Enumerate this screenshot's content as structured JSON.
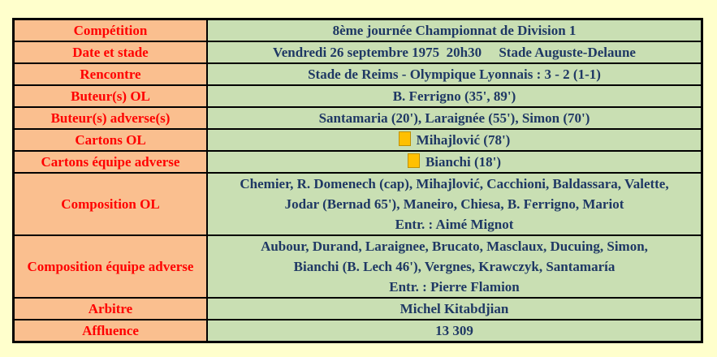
{
  "page": {
    "background_color": "#FFFFCC"
  },
  "table": {
    "label_bg_color": "#FABF8F",
    "label_text_color": "#FF0000",
    "value_bg_color": "#C9DFB3",
    "value_text_color": "#1F3864",
    "yellow_card_color": "#FFC000",
    "rows": [
      {
        "label": "Compétition",
        "value": "8ème journée Championnat de Division 1"
      },
      {
        "label": "Date et stade",
        "value": "Vendredi 26 septembre 1975  20h30     Stade Auguste-Delaune"
      },
      {
        "label": "Rencontre",
        "value": "Stade de Reims - Olympique Lyonnais : 3 - 2 (1-1)"
      },
      {
        "label": "Buteur(s) OL",
        "value": "B. Ferrigno (35', 89')"
      },
      {
        "label": "Buteur(s) adverse(s)",
        "value": "Santamaria (20'), Laraignée (55'), Simon (70')"
      },
      {
        "label": "Cartons OL",
        "value": "Mihajlović (78')",
        "icon": "yellow-card"
      },
      {
        "label": "Cartons équipe adverse",
        "value": "Bianchi (18')",
        "icon": "yellow-card"
      },
      {
        "label": "Composition OL",
        "value": "Chemier, R. Domenech (cap), Mihajlović, Cacchioni, Baldassara, Valette,\nJodar (Bernad 65'), Maneiro, Chiesa, B. Ferrigno, Mariot\nEntr. : Aimé Mignot"
      },
      {
        "label": "Composition équipe adverse",
        "value": "Aubour, Durand, Laraignee, Brucato, Masclaux, Ducuing, Simon,\nBianchi (B. Lech 46'), Vergnes, Krawczyk, Santamaría\nEntr. : Pierre Flamion"
      },
      {
        "label": "Arbitre",
        "value": "Michel Kitabdjian"
      },
      {
        "label": "Affluence",
        "value": "13 309"
      }
    ]
  }
}
